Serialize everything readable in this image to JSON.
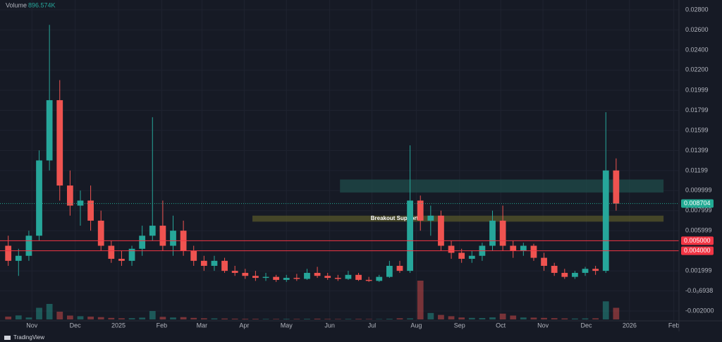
{
  "chart_data": {
    "type": "candlestick",
    "x": [
      0,
      1,
      2,
      3,
      4,
      5,
      6,
      7,
      8,
      9,
      10,
      11,
      12,
      13,
      14,
      15,
      16,
      17,
      18,
      19,
      20,
      21,
      22,
      23,
      24,
      25,
      26,
      27,
      28,
      29,
      30,
      31,
      32,
      33,
      34,
      35,
      36,
      37,
      38,
      39,
      40,
      41,
      42,
      43,
      44,
      45,
      46,
      47,
      48,
      49,
      50,
      51,
      52,
      53,
      54,
      55,
      56,
      57,
      58,
      59
    ],
    "open": [
      0.0045,
      0.003,
      0.0035,
      0.0055,
      0.013,
      0.019,
      0.0105,
      0.0085,
      0.009,
      0.007,
      0.0045,
      0.0032,
      0.003,
      0.0042,
      0.0055,
      0.0065,
      0.0045,
      0.006,
      0.004,
      0.003,
      0.0025,
      0.003,
      0.002,
      0.0018,
      0.0015,
      0.0013,
      0.0014,
      0.0011,
      0.0013,
      0.0012,
      0.0018,
      0.0015,
      0.0013,
      0.0012,
      0.0016,
      0.0011,
      0.001,
      0.0014,
      0.0025,
      0.002,
      0.009,
      0.007,
      0.0075,
      0.0045,
      0.0038,
      0.0032,
      0.0035,
      0.0045,
      0.007,
      0.0045,
      0.004,
      0.0045,
      0.0033,
      0.0025,
      0.0018,
      0.0014,
      0.0018,
      0.0022,
      0.002,
      0.012
    ],
    "high": [
      0.0055,
      0.0042,
      0.006,
      0.014,
      0.0265,
      0.021,
      0.012,
      0.01,
      0.0105,
      0.008,
      0.005,
      0.004,
      0.0045,
      0.0065,
      0.0173,
      0.009,
      0.0075,
      0.007,
      0.0045,
      0.0035,
      0.0035,
      0.0033,
      0.0025,
      0.0022,
      0.002,
      0.0018,
      0.0016,
      0.0016,
      0.0017,
      0.0022,
      0.0024,
      0.0018,
      0.0016,
      0.002,
      0.0018,
      0.0014,
      0.0016,
      0.003,
      0.003,
      0.0145,
      0.0095,
      0.0085,
      0.008,
      0.005,
      0.0042,
      0.004,
      0.0048,
      0.008,
      0.0085,
      0.005,
      0.0048,
      0.0047,
      0.0038,
      0.0028,
      0.0022,
      0.002,
      0.0024,
      0.0025,
      0.0178,
      0.0132
    ],
    "low": [
      0.0025,
      0.0015,
      0.003,
      0.005,
      0.012,
      0.009,
      0.0075,
      0.0065,
      0.006,
      0.004,
      0.0028,
      0.0025,
      0.0025,
      0.0035,
      0.005,
      0.004,
      0.0035,
      0.0035,
      0.0025,
      0.002,
      0.002,
      0.0018,
      0.0015,
      0.0012,
      0.001,
      0.001,
      0.0009,
      0.0009,
      0.001,
      0.0011,
      0.0013,
      0.0011,
      0.001,
      0.0011,
      0.001,
      0.0009,
      0.0009,
      0.0013,
      0.0018,
      0.0018,
      0.006,
      0.0055,
      0.004,
      0.0032,
      0.0028,
      0.0028,
      0.003,
      0.004,
      0.004,
      0.0033,
      0.0035,
      0.003,
      0.002,
      0.0015,
      0.0012,
      0.0012,
      0.0015,
      0.0016,
      0.0018,
      0.008
    ],
    "close": [
      0.003,
      0.0035,
      0.0055,
      0.013,
      0.019,
      0.0105,
      0.0085,
      0.009,
      0.007,
      0.0045,
      0.0032,
      0.003,
      0.0042,
      0.0055,
      0.0065,
      0.0045,
      0.006,
      0.004,
      0.003,
      0.0025,
      0.003,
      0.002,
      0.0018,
      0.0015,
      0.0013,
      0.0014,
      0.0011,
      0.0013,
      0.0012,
      0.0018,
      0.0015,
      0.0013,
      0.0012,
      0.0016,
      0.0011,
      0.001,
      0.0014,
      0.0025,
      0.002,
      0.009,
      0.007,
      0.0075,
      0.0045,
      0.0038,
      0.0032,
      0.0035,
      0.0045,
      0.007,
      0.0045,
      0.004,
      0.0045,
      0.0033,
      0.0025,
      0.0018,
      0.0014,
      0.0018,
      0.0022,
      0.002,
      0.012,
      0.0087
    ],
    "volume": [
      2200,
      3100,
      1500,
      9000,
      12000,
      6000,
      3000,
      2500,
      2200,
      1800,
      1200,
      900,
      1000,
      1400,
      6500,
      2000,
      1500,
      1800,
      1200,
      900,
      800,
      700,
      600,
      500,
      500,
      400,
      400,
      450,
      400,
      500,
      600,
      400,
      350,
      400,
      450,
      350,
      300,
      500,
      900,
      800,
      30000,
      5000,
      3500,
      2500,
      1500,
      1200,
      1100,
      1600,
      4500,
      3000,
      1500,
      1400,
      1200,
      1000,
      800,
      700,
      800,
      900,
      14000,
      9000
    ],
    "up_color": "#26a69a",
    "down_color": "#ef5350",
    "xlim": [
      -0.8,
      65.1
    ],
    "ylim": [
      -0.00298,
      0.02898
    ],
    "xticks": [
      {
        "value": 2.3,
        "label": "Nov"
      },
      {
        "value": 6.5,
        "label": "Dec"
      },
      {
        "value": 10.7,
        "label": "2025"
      },
      {
        "value": 14.9,
        "label": "Feb"
      },
      {
        "value": 18.8,
        "label": "Mar"
      },
      {
        "value": 22.9,
        "label": "Apr"
      },
      {
        "value": 27.0,
        "label": "May"
      },
      {
        "value": 31.2,
        "label": "Jun"
      },
      {
        "value": 35.3,
        "label": "Jul"
      },
      {
        "value": 39.6,
        "label": "Aug"
      },
      {
        "value": 43.8,
        "label": "Sep"
      },
      {
        "value": 47.8,
        "label": "Oct"
      },
      {
        "value": 51.9,
        "label": "Nov"
      },
      {
        "value": 56.1,
        "label": "Dec"
      },
      {
        "value": 60.3,
        "label": "2026"
      },
      {
        "value": 64.6,
        "label": "Feb"
      }
    ],
    "yticks": [
      {
        "value": 0.028,
        "label": "0.02800"
      },
      {
        "value": 0.026,
        "label": "0.02600"
      },
      {
        "value": 0.024,
        "label": "0.02400"
      },
      {
        "value": 0.022,
        "label": "0.02200"
      },
      0.01999,
      0.01799,
      0.01599,
      0.01399,
      0.01199,
      0.009999,
      0.007999,
      0.005999,
      0.001999,
      {
        "value": -6.938e-07,
        "label": "-0.0₀6938"
      },
      {
        "value": -0.002,
        "label": "-0.002000"
      }
    ],
    "levels": [
      {
        "value": 0.005,
        "label": "0.005000",
        "color": "#f23645"
      },
      {
        "value": 0.004,
        "label": "0.004000",
        "color": "#f23645"
      }
    ],
    "last_price": {
      "value": 0.008704,
      "label": "0.008704",
      "color": "#22ab94"
    },
    "zones": [
      {
        "x": [
          32.2,
          63.6
        ],
        "range": [
          0.0098,
          0.0111
        ],
        "color": "#1f4f4b"
      },
      {
        "x": [
          23.7,
          63.6
        ],
        "range": [
          0.0069,
          0.0075
        ],
        "color": "#5a5a2a",
        "label": "Breakout Support"
      }
    ],
    "volume_label": "Volume",
    "volume_value": "896.574K",
    "brand": "TradingView"
  }
}
